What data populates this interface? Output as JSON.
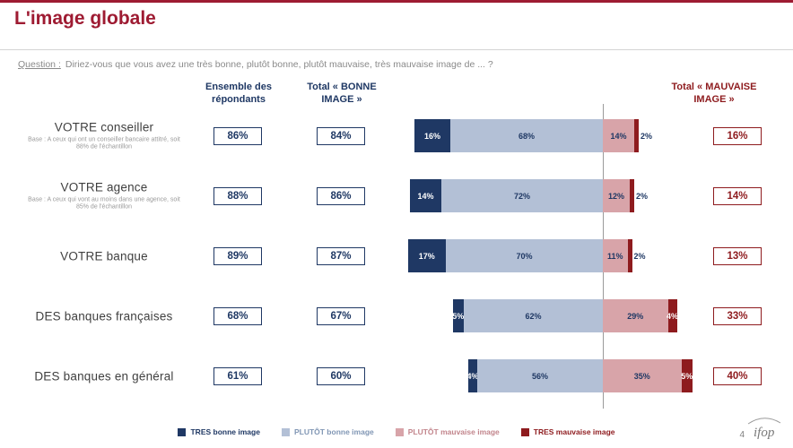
{
  "page": {
    "title": "L'image globale",
    "page_number": "4",
    "logo_text": "ifop"
  },
  "question": {
    "label": "Question :",
    "text": "Diriez-vous que vous avez une très bonne, plutôt bonne, plutôt mauvaise, très mauvaise image de ... ?"
  },
  "columns": {
    "respondents": "Ensemble des répondants",
    "good_total": "Total « BONNE IMAGE »",
    "bad_total": "Total « MAUVAISE IMAGE »"
  },
  "chart_data": {
    "type": "bar",
    "orientation": "horizontal-stacked",
    "unit": "%",
    "title": "L'image globale",
    "legend_position": "bottom",
    "categories": [
      "VOTRE conseiller",
      "VOTRE agence",
      "VOTRE banque",
      "DES banques françaises",
      "DES banques en général"
    ],
    "base_notes": [
      "Base : A ceux qui ont un conseiller bancaire attitré, soit 88% de l'échantillon",
      "Base : A ceux qui vont au moins dans une agence, soit 85% de l'échantillon",
      "",
      "",
      ""
    ],
    "series": [
      {
        "name": "TRES bonne image",
        "color": "#1f3864",
        "label_color": "#ffffff",
        "legend_text_color": "#1f3864",
        "values": [
          16,
          14,
          17,
          5,
          4
        ]
      },
      {
        "name": "PLUTÔT bonne image",
        "color": "#b3c0d6",
        "label_color": "#1f3864",
        "legend_text_color": "#8096b4",
        "values": [
          68,
          72,
          70,
          62,
          56
        ]
      },
      {
        "name": "PLUTÔT mauvaise image",
        "color": "#d8a4a9",
        "label_color": "#1f3864",
        "legend_text_color": "#c2858c",
        "values": [
          14,
          12,
          11,
          29,
          35
        ]
      },
      {
        "name": "TRES mauvaise image",
        "color": "#8e1b1e",
        "label_color": "#ffffff",
        "legend_text_color": "#8e1b1e",
        "values": [
          2,
          2,
          2,
          4,
          5
        ]
      }
    ],
    "respondents_totals": [
      "86%",
      "88%",
      "89%",
      "68%",
      "61%"
    ],
    "good_totals": [
      "84%",
      "86%",
      "87%",
      "67%",
      "60%"
    ],
    "bad_totals": [
      "16%",
      "14%",
      "13%",
      "33%",
      "40%"
    ],
    "axis": {
      "divider": "between bonne image and mauvaise image segments",
      "scale": "100% of bar = full row"
    }
  }
}
